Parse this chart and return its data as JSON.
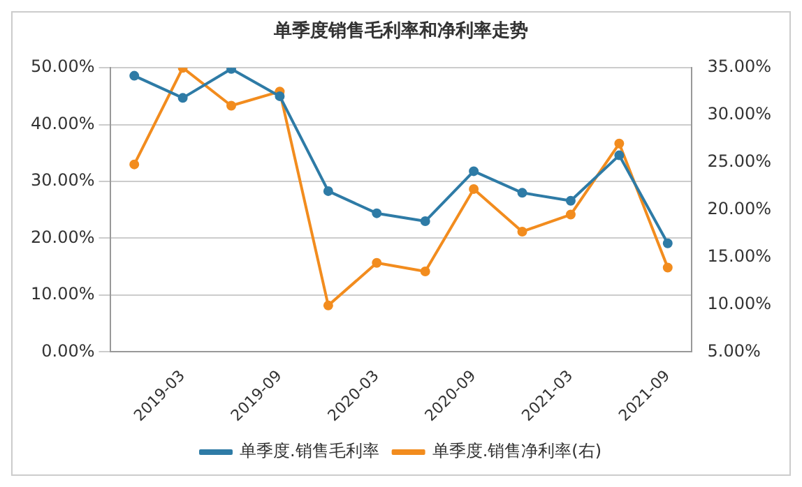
{
  "chart_data": {
    "type": "line",
    "title": "单季度销售毛利率和净利率走势",
    "categories": [
      null,
      "2019-03",
      null,
      "2019-09",
      null,
      "2020-03",
      null,
      "2020-09",
      null,
      "2021-03",
      null,
      "2021-09"
    ],
    "series": [
      {
        "name": "单季度.销售毛利率",
        "color": "#2e7ba6",
        "values": [
          48.6,
          44.7,
          49.8,
          45.0,
          28.3,
          24.4,
          23.0,
          31.8,
          28.0,
          26.6,
          34.6,
          19.1
        ]
      },
      {
        "name": "单季度.销售净利率(右)",
        "color": "#f28c1e",
        "axis": "y2",
        "values": [
          24.8,
          35.0,
          31.0,
          32.5,
          9.9,
          14.4,
          13.5,
          22.2,
          17.7,
          19.5,
          27.0,
          13.9
        ]
      }
    ],
    "ylim": [
      0,
      50
    ],
    "yticks": [
      {
        "value": 0,
        "label": "0.00%"
      },
      {
        "value": 10,
        "label": "10.00%"
      },
      {
        "value": 20,
        "label": "20.00%"
      },
      {
        "value": 30,
        "label": "30.00%"
      },
      {
        "value": 40,
        "label": "40.00%"
      },
      {
        "value": 50,
        "label": "50.00%"
      }
    ],
    "y2lim": [
      5,
      35
    ],
    "y2ticks": [
      {
        "value": 5,
        "label": "5.00%"
      },
      {
        "value": 10,
        "label": "10.00%"
      },
      {
        "value": 15,
        "label": "15.00%"
      },
      {
        "value": 20,
        "label": "20.00%"
      },
      {
        "value": 25,
        "label": "25.00%"
      },
      {
        "value": 30,
        "label": "30.00%"
      },
      {
        "value": 35,
        "label": "35.00%"
      }
    ],
    "grid": "y",
    "legend": "bottom",
    "marker": "circle",
    "line_style": "solid"
  }
}
